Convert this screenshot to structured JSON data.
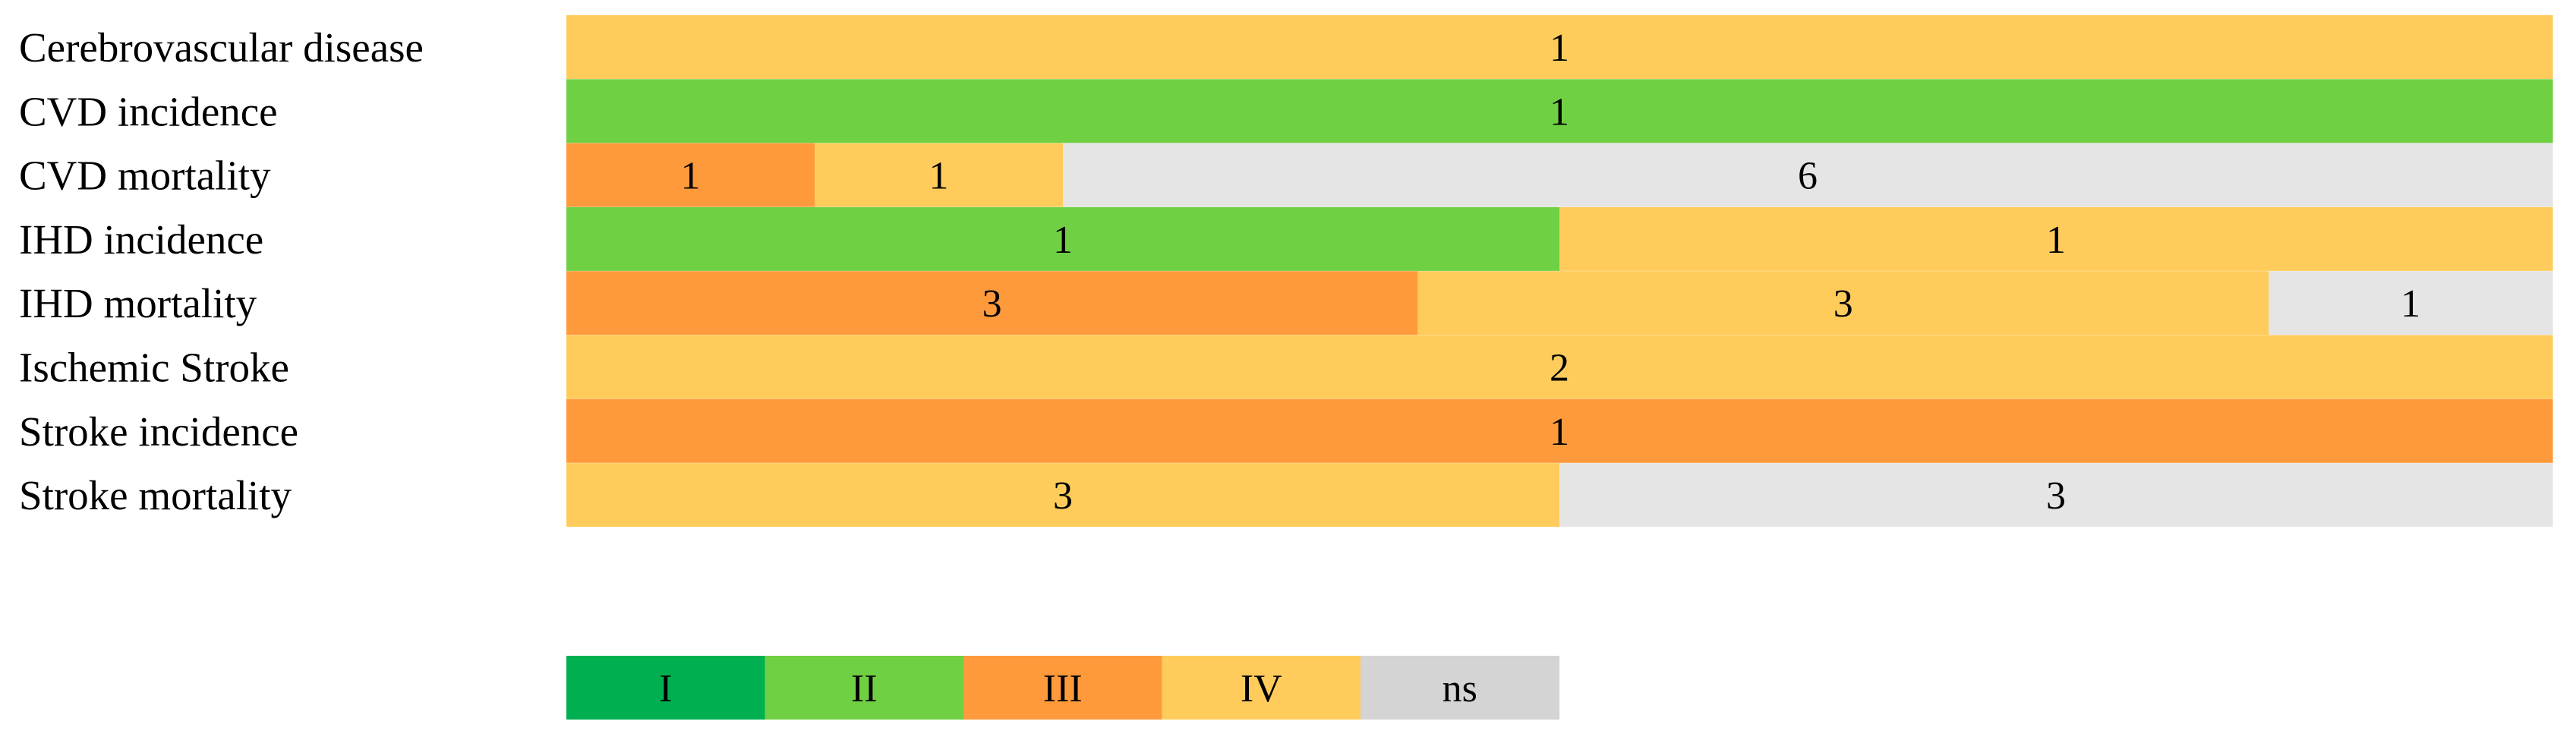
{
  "chart_data": {
    "type": "bar",
    "orientation": "horizontal",
    "stacked": true,
    "normalized": true,
    "title": "",
    "xlabel": "",
    "ylabel": "",
    "grid": false,
    "legend_placement": "bottom",
    "categories": [
      "Cerebrovascular disease",
      "CVD incidence",
      "CVD mortality",
      "IHD incidence",
      "IHD mortality",
      "Ischemic Stroke",
      "Stroke incidence",
      "Stroke mortality"
    ],
    "series": [
      {
        "name": "I",
        "color": "#00b050",
        "values": [
          0,
          0,
          0,
          0,
          0,
          0,
          0,
          0
        ]
      },
      {
        "name": "II",
        "color": "#70d044",
        "values": [
          0,
          1,
          0,
          1,
          0,
          0,
          0,
          0
        ]
      },
      {
        "name": "III",
        "color": "#ff9a3c",
        "values": [
          0,
          0,
          1,
          0,
          3,
          0,
          1,
          0
        ]
      },
      {
        "name": "IV",
        "color": "#ffcc5c",
        "values": [
          1,
          0,
          1,
          1,
          3,
          2,
          0,
          3
        ]
      },
      {
        "name": "ns",
        "color": "#e5e5e5",
        "values": [
          0,
          0,
          6,
          0,
          1,
          0,
          0,
          3
        ]
      }
    ],
    "legend_swatch_colors": [
      "#00b050",
      "#70d044",
      "#ff9a3c",
      "#ffcc5c",
      "#d4d4d4"
    ]
  }
}
